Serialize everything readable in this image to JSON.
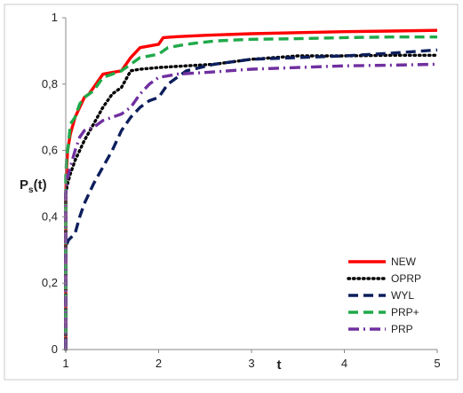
{
  "chart_data": {
    "type": "line",
    "title": "",
    "xlabel": "t",
    "ylabel_main": "P",
    "ylabel_sub": "s",
    "ylabel_tail": "(t)",
    "xlim": [
      1,
      5
    ],
    "ylim": [
      0,
      1
    ],
    "x_ticks": [
      1,
      2,
      3,
      4,
      5
    ],
    "x_tick_labels": [
      "1",
      "2",
      "3",
      "4",
      "5"
    ],
    "y_ticks": [
      0,
      0.2,
      0.4,
      0.6,
      0.8,
      1
    ],
    "y_tick_labels": [
      "0",
      "0,2",
      "0,4",
      "0,6",
      "0,8",
      "1"
    ],
    "grid": false,
    "legend_position": "bottom-right",
    "series": [
      {
        "name": "NEW",
        "color": "#ff0000",
        "dash": "solid",
        "points": [
          [
            1,
            0.47
          ],
          [
            1.01,
            0.55
          ],
          [
            1.02,
            0.6
          ],
          [
            1.05,
            0.65
          ],
          [
            1.1,
            0.7
          ],
          [
            1.15,
            0.73
          ],
          [
            1.2,
            0.76
          ],
          [
            1.25,
            0.77
          ],
          [
            1.3,
            0.79
          ],
          [
            1.4,
            0.83
          ],
          [
            1.5,
            0.835
          ],
          [
            1.6,
            0.84
          ],
          [
            1.7,
            0.88
          ],
          [
            1.8,
            0.91
          ],
          [
            1.9,
            0.915
          ],
          [
            2.0,
            0.92
          ],
          [
            2.05,
            0.94
          ],
          [
            2.2,
            0.943
          ],
          [
            2.5,
            0.947
          ],
          [
            3.0,
            0.952
          ],
          [
            3.5,
            0.955
          ],
          [
            4.0,
            0.958
          ],
          [
            4.5,
            0.96
          ],
          [
            5.0,
            0.962
          ]
        ]
      },
      {
        "name": "OPRP",
        "color": "#000000",
        "dash": "dotted",
        "points": [
          [
            1,
            0.47
          ],
          [
            1.02,
            0.5
          ],
          [
            1.05,
            0.53
          ],
          [
            1.1,
            0.57
          ],
          [
            1.15,
            0.6
          ],
          [
            1.2,
            0.63
          ],
          [
            1.3,
            0.68
          ],
          [
            1.4,
            0.73
          ],
          [
            1.5,
            0.77
          ],
          [
            1.6,
            0.79
          ],
          [
            1.7,
            0.84
          ],
          [
            1.8,
            0.845
          ],
          [
            2.0,
            0.85
          ],
          [
            2.3,
            0.855
          ],
          [
            2.6,
            0.86
          ],
          [
            3.0,
            0.875
          ],
          [
            3.5,
            0.885
          ],
          [
            4.0,
            0.885
          ],
          [
            4.5,
            0.887
          ],
          [
            5.0,
            0.887
          ]
        ]
      },
      {
        "name": "WYL",
        "color": "#0d1e5c",
        "dash": "dashed",
        "points": [
          [
            1,
            0.31
          ],
          [
            1.03,
            0.33
          ],
          [
            1.1,
            0.35
          ],
          [
            1.15,
            0.4
          ],
          [
            1.2,
            0.44
          ],
          [
            1.3,
            0.5
          ],
          [
            1.4,
            0.55
          ],
          [
            1.5,
            0.6
          ],
          [
            1.6,
            0.66
          ],
          [
            1.7,
            0.7
          ],
          [
            1.8,
            0.73
          ],
          [
            1.9,
            0.75
          ],
          [
            2.0,
            0.76
          ],
          [
            2.1,
            0.8
          ],
          [
            2.3,
            0.84
          ],
          [
            2.6,
            0.86
          ],
          [
            3.0,
            0.875
          ],
          [
            3.5,
            0.88
          ],
          [
            4.0,
            0.885
          ],
          [
            4.5,
            0.893
          ],
          [
            5.0,
            0.903
          ]
        ]
      },
      {
        "name": "PRP+",
        "color": "#1faa4a",
        "dash": "dashed",
        "points": [
          [
            1,
            0.52
          ],
          [
            1.01,
            0.58
          ],
          [
            1.03,
            0.62
          ],
          [
            1.05,
            0.68
          ],
          [
            1.1,
            0.7
          ],
          [
            1.15,
            0.74
          ],
          [
            1.2,
            0.76
          ],
          [
            1.3,
            0.78
          ],
          [
            1.4,
            0.82
          ],
          [
            1.5,
            0.83
          ],
          [
            1.6,
            0.84
          ],
          [
            1.7,
            0.86
          ],
          [
            1.8,
            0.88
          ],
          [
            2.0,
            0.89
          ],
          [
            2.1,
            0.91
          ],
          [
            2.3,
            0.92
          ],
          [
            2.6,
            0.93
          ],
          [
            3.0,
            0.935
          ],
          [
            3.5,
            0.937
          ],
          [
            4.0,
            0.94
          ],
          [
            4.5,
            0.942
          ],
          [
            5.0,
            0.942
          ]
        ]
      },
      {
        "name": "PRP",
        "color": "#7030a0",
        "dash": "dashdot",
        "points": [
          [
            1,
            0.47
          ],
          [
            1.02,
            0.52
          ],
          [
            1.05,
            0.55
          ],
          [
            1.1,
            0.6
          ],
          [
            1.15,
            0.64
          ],
          [
            1.2,
            0.66
          ],
          [
            1.3,
            0.67
          ],
          [
            1.4,
            0.69
          ],
          [
            1.5,
            0.7
          ],
          [
            1.6,
            0.71
          ],
          [
            1.7,
            0.73
          ],
          [
            1.8,
            0.77
          ],
          [
            1.9,
            0.8
          ],
          [
            2.0,
            0.82
          ],
          [
            2.2,
            0.83
          ],
          [
            2.5,
            0.835
          ],
          [
            3.0,
            0.845
          ],
          [
            3.5,
            0.85
          ],
          [
            4.0,
            0.855
          ],
          [
            4.5,
            0.857
          ],
          [
            5.0,
            0.86
          ]
        ]
      }
    ]
  }
}
